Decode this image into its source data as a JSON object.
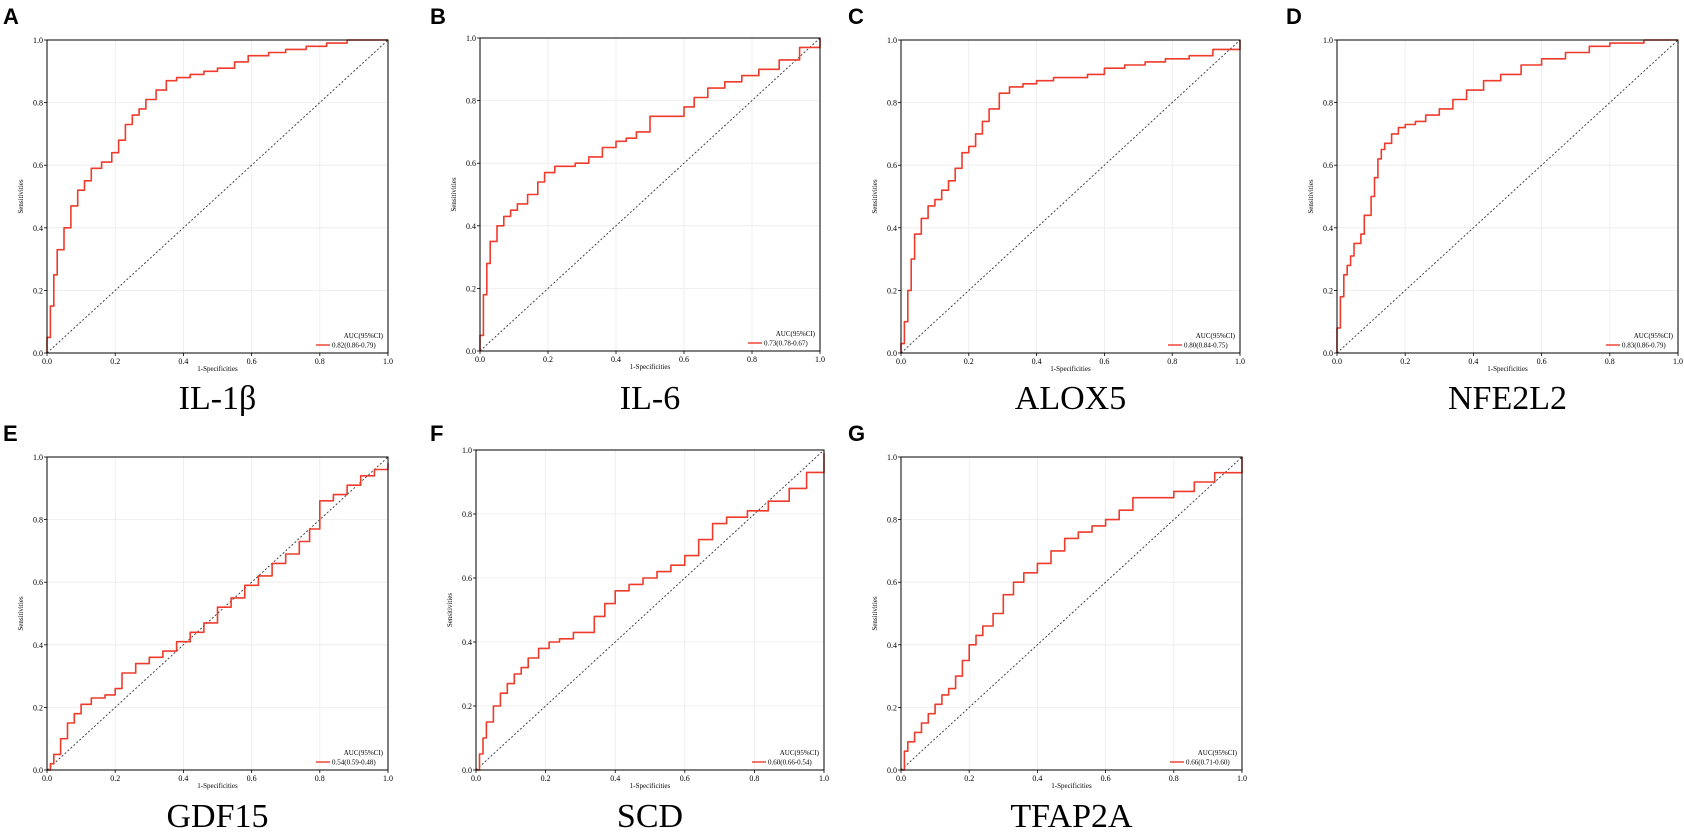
{
  "colors": {
    "roc": "#ee3b2b",
    "diagonal": "#333333",
    "grid": "#ebebeb"
  },
  "chart_data": [
    {
      "type": "line",
      "letter": "A",
      "title": "IL-1β",
      "xlabel": "1-Specificities",
      "ylabel": "Sensitivities",
      "xlim": [
        0,
        1
      ],
      "ylim": [
        0,
        1
      ],
      "xticks": [
        "0.0",
        "0.2",
        "0.4",
        "0.6",
        "0.8",
        "1.0"
      ],
      "yticks": [
        "0.0",
        "0.2",
        "0.4",
        "0.6",
        "0.8",
        "1.0"
      ],
      "legend_title": "AUC(95%CI)",
      "legend_label": "0.82(0.86-0.79)",
      "series": [
        {
          "name": "ROC",
          "x": [
            0,
            0,
            0.01,
            0.02,
            0.03,
            0.05,
            0.07,
            0.09,
            0.11,
            0.13,
            0.16,
            0.19,
            0.21,
            0.23,
            0.25,
            0.27,
            0.29,
            0.32,
            0.35,
            0.38,
            0.42,
            0.46,
            0.5,
            0.55,
            0.59,
            0.65,
            0.7,
            0.76,
            0.82,
            0.88,
            1.0
          ],
          "y": [
            0,
            0.05,
            0.15,
            0.25,
            0.33,
            0.4,
            0.47,
            0.52,
            0.55,
            0.59,
            0.61,
            0.64,
            0.68,
            0.73,
            0.76,
            0.78,
            0.81,
            0.84,
            0.87,
            0.88,
            0.89,
            0.9,
            0.91,
            0.93,
            0.95,
            0.96,
            0.97,
            0.98,
            0.99,
            1.0,
            1.0
          ]
        }
      ]
    },
    {
      "type": "line",
      "letter": "B",
      "title": "IL-6",
      "xlabel": "1-Specificities",
      "ylabel": "Sensitivities",
      "xlim": [
        0,
        1
      ],
      "ylim": [
        0,
        1
      ],
      "xticks": [
        "0.0",
        "0.2",
        "0.4",
        "0.6",
        "0.8",
        "1.0"
      ],
      "yticks": [
        "0.0",
        "0.2",
        "0.4",
        "0.6",
        "0.8",
        "1.0"
      ],
      "legend_title": "AUC(95%CI)",
      "legend_label": "0.73(0.78-0.67)",
      "series": [
        {
          "name": "ROC",
          "x": [
            0,
            0,
            0.01,
            0.02,
            0.03,
            0.05,
            0.07,
            0.09,
            0.11,
            0.14,
            0.17,
            0.19,
            0.22,
            0.25,
            0.28,
            0.32,
            0.36,
            0.4,
            0.43,
            0.46,
            0.5,
            0.55,
            0.6,
            0.63,
            0.67,
            0.72,
            0.77,
            0.82,
            0.88,
            0.94,
            1.0
          ],
          "y": [
            0,
            0.05,
            0.18,
            0.28,
            0.35,
            0.4,
            0.43,
            0.45,
            0.47,
            0.5,
            0.54,
            0.57,
            0.59,
            0.59,
            0.6,
            0.62,
            0.65,
            0.67,
            0.68,
            0.7,
            0.75,
            0.75,
            0.78,
            0.81,
            0.84,
            0.86,
            0.88,
            0.9,
            0.93,
            0.97,
            1.0
          ]
        }
      ]
    },
    {
      "type": "line",
      "letter": "C",
      "title": "ALOX5",
      "xlabel": "1-Specificities",
      "ylabel": "Sensitivities",
      "xlim": [
        0,
        1
      ],
      "ylim": [
        0,
        1
      ],
      "xticks": [
        "0.0",
        "0.2",
        "0.4",
        "0.6",
        "0.8",
        "1.0"
      ],
      "yticks": [
        "0.0",
        "0.2",
        "0.4",
        "0.6",
        "0.8",
        "1.0"
      ],
      "legend_title": "AUC(95%CI)",
      "legend_label": "0.80(0.84-0.75)",
      "series": [
        {
          "name": "ROC",
          "x": [
            0,
            0,
            0.01,
            0.02,
            0.03,
            0.04,
            0.06,
            0.08,
            0.1,
            0.12,
            0.14,
            0.16,
            0.18,
            0.2,
            0.22,
            0.24,
            0.26,
            0.29,
            0.32,
            0.36,
            0.4,
            0.45,
            0.5,
            0.55,
            0.6,
            0.66,
            0.72,
            0.78,
            0.85,
            0.92,
            1.0
          ],
          "y": [
            0,
            0.03,
            0.1,
            0.2,
            0.3,
            0.38,
            0.43,
            0.47,
            0.49,
            0.52,
            0.55,
            0.59,
            0.64,
            0.66,
            0.7,
            0.74,
            0.78,
            0.83,
            0.85,
            0.86,
            0.87,
            0.88,
            0.88,
            0.89,
            0.91,
            0.92,
            0.93,
            0.94,
            0.95,
            0.97,
            1.0
          ]
        }
      ]
    },
    {
      "type": "line",
      "letter": "D",
      "title": "NFE2L2",
      "xlabel": "1-Specificities",
      "ylabel": "Sensitivities",
      "xlim": [
        0,
        1
      ],
      "ylim": [
        0,
        1
      ],
      "xticks": [
        "0.0",
        "0.2",
        "0.4",
        "0.6",
        "0.8",
        "1.0"
      ],
      "yticks": [
        "0.0",
        "0.2",
        "0.4",
        "0.6",
        "0.8",
        "1.0"
      ],
      "legend_title": "AUC(95%CI)",
      "legend_label": "0.83(0.86-0.79)",
      "series": [
        {
          "name": "ROC",
          "x": [
            0,
            0,
            0.01,
            0.02,
            0.03,
            0.04,
            0.05,
            0.07,
            0.08,
            0.1,
            0.11,
            0.12,
            0.13,
            0.14,
            0.16,
            0.18,
            0.2,
            0.23,
            0.26,
            0.3,
            0.34,
            0.38,
            0.43,
            0.48,
            0.54,
            0.6,
            0.67,
            0.74,
            0.8,
            0.9,
            1.0
          ],
          "y": [
            0,
            0.08,
            0.18,
            0.25,
            0.28,
            0.31,
            0.35,
            0.38,
            0.44,
            0.5,
            0.56,
            0.62,
            0.65,
            0.67,
            0.7,
            0.72,
            0.73,
            0.74,
            0.76,
            0.78,
            0.81,
            0.84,
            0.87,
            0.89,
            0.92,
            0.94,
            0.96,
            0.98,
            0.99,
            1.0,
            1.0
          ]
        }
      ]
    },
    {
      "type": "line",
      "letter": "E",
      "title": "GDF15",
      "xlabel": "1-Specificities",
      "ylabel": "Sensitivities",
      "xlim": [
        0,
        1
      ],
      "ylim": [
        0,
        1
      ],
      "xticks": [
        "0.0",
        "0.2",
        "0.4",
        "0.6",
        "0.8",
        "1.0"
      ],
      "yticks": [
        "0.0",
        "0.2",
        "0.4",
        "0.6",
        "0.8",
        "1.0"
      ],
      "legend_title": "AUC(95%CI)",
      "legend_label": "0.54(0.59-0.48)",
      "series": [
        {
          "name": "ROC",
          "x": [
            0,
            0.01,
            0.02,
            0.04,
            0.06,
            0.08,
            0.1,
            0.13,
            0.17,
            0.2,
            0.22,
            0.26,
            0.3,
            0.34,
            0.38,
            0.42,
            0.46,
            0.5,
            0.54,
            0.58,
            0.62,
            0.66,
            0.7,
            0.74,
            0.77,
            0.8,
            0.84,
            0.88,
            0.92,
            0.96,
            1.0
          ],
          "y": [
            0,
            0.02,
            0.05,
            0.1,
            0.15,
            0.18,
            0.21,
            0.23,
            0.24,
            0.26,
            0.31,
            0.34,
            0.36,
            0.38,
            0.41,
            0.44,
            0.47,
            0.52,
            0.55,
            0.59,
            0.62,
            0.66,
            0.69,
            0.73,
            0.77,
            0.86,
            0.88,
            0.91,
            0.94,
            0.96,
            0.98
          ]
        }
      ]
    },
    {
      "type": "line",
      "letter": "F",
      "title": "SCD",
      "xlabel": "1-Specificities",
      "ylabel": "Sensitivities",
      "xlim": [
        0,
        1
      ],
      "ylim": [
        0,
        1
      ],
      "xticks": [
        "0.0",
        "0.2",
        "0.4",
        "0.6",
        "0.8",
        "1.0"
      ],
      "yticks": [
        "0.0",
        "0.2",
        "0.4",
        "0.6",
        "0.8",
        "1.0"
      ],
      "legend_title": "AUC(95%CI)",
      "legend_label": "0.60(0.66-0.54)",
      "series": [
        {
          "name": "ROC",
          "x": [
            0,
            0.01,
            0.02,
            0.03,
            0.05,
            0.07,
            0.09,
            0.11,
            0.13,
            0.15,
            0.18,
            0.21,
            0.24,
            0.28,
            0.31,
            0.34,
            0.37,
            0.4,
            0.44,
            0.48,
            0.52,
            0.56,
            0.6,
            0.64,
            0.68,
            0.72,
            0.78,
            0.84,
            0.9,
            0.95,
            1.0
          ],
          "y": [
            0,
            0.05,
            0.1,
            0.15,
            0.2,
            0.24,
            0.27,
            0.3,
            0.32,
            0.35,
            0.38,
            0.4,
            0.41,
            0.43,
            0.43,
            0.48,
            0.52,
            0.56,
            0.58,
            0.6,
            0.62,
            0.64,
            0.67,
            0.72,
            0.77,
            0.79,
            0.81,
            0.84,
            0.88,
            0.93,
            0.99
          ]
        }
      ]
    },
    {
      "type": "line",
      "letter": "G",
      "title": "TFAP2A",
      "xlabel": "1-Specificities",
      "ylabel": "Sensitivities",
      "xlim": [
        0,
        1
      ],
      "ylim": [
        0,
        1
      ],
      "xticks": [
        "0.0",
        "0.2",
        "0.4",
        "0.6",
        "0.8",
        "1.0"
      ],
      "yticks": [
        "0.0",
        "0.2",
        "0.4",
        "0.6",
        "0.8",
        "1.0"
      ],
      "legend_title": "AUC(95%CI)",
      "legend_label": "0.66(0.71-0.60)",
      "series": [
        {
          "name": "ROC",
          "x": [
            0,
            0.01,
            0.02,
            0.04,
            0.06,
            0.08,
            0.1,
            0.12,
            0.14,
            0.16,
            0.18,
            0.2,
            0.22,
            0.24,
            0.27,
            0.3,
            0.33,
            0.36,
            0.4,
            0.44,
            0.48,
            0.52,
            0.56,
            0.6,
            0.64,
            0.68,
            0.74,
            0.8,
            0.86,
            0.92,
            1.0
          ],
          "y": [
            0,
            0.06,
            0.09,
            0.12,
            0.15,
            0.18,
            0.21,
            0.24,
            0.26,
            0.3,
            0.35,
            0.4,
            0.43,
            0.46,
            0.5,
            0.56,
            0.6,
            0.63,
            0.66,
            0.7,
            0.74,
            0.76,
            0.78,
            0.8,
            0.83,
            0.87,
            0.87,
            0.89,
            0.92,
            0.95,
            1.0
          ]
        }
      ]
    }
  ]
}
